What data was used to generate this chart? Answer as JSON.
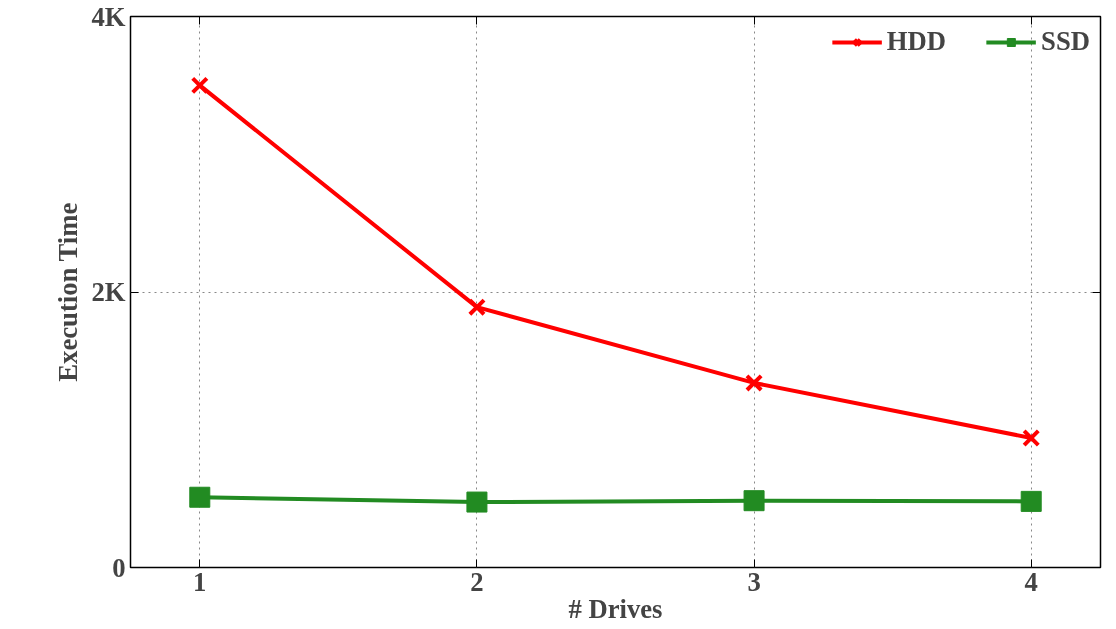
{
  "chart_data": {
    "type": "line",
    "xlabel": "# Drives",
    "ylabel": "Execution Time",
    "x": [
      1,
      2,
      3,
      4
    ],
    "series": [
      {
        "name": "HDD",
        "color": "#ff0000",
        "marker": "cross",
        "values": [
          3500,
          1890,
          1340,
          940
        ]
      },
      {
        "name": "SSD",
        "color": "#228b22",
        "marker": "square",
        "values": [
          510,
          475,
          485,
          480
        ]
      }
    ],
    "xlim": [
      0.75,
      4.25
    ],
    "xticks": [
      1,
      2,
      3,
      4
    ],
    "ylim": [
      0,
      4000
    ],
    "yticks": [
      {
        "value": 0,
        "label": "0"
      },
      {
        "value": 2000,
        "label": "2K"
      },
      {
        "value": 4000,
        "label": "4K"
      }
    ],
    "grid": true,
    "legend": "top right",
    "line_style": "solid"
  }
}
